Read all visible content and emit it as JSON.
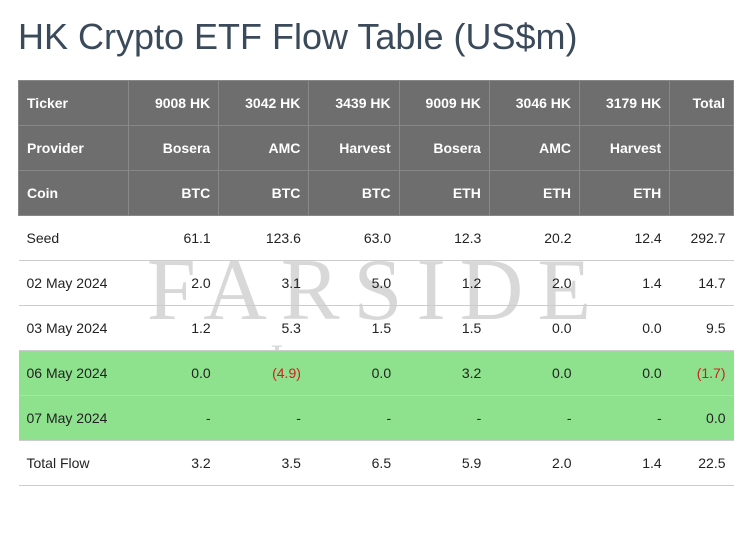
{
  "title": "HK Crypto ETF Flow Table (US$m)",
  "watermark": {
    "line1": "FARSIDE",
    "line2": "Investors"
  },
  "colors": {
    "header_bg": "#6e6e6e",
    "header_text": "#ffffff",
    "row_highlight": "#8ee28e",
    "negative_text": "#d11e1e",
    "title_text": "#3a4a5a",
    "border": "#cccccc",
    "watermark_text": "#d8d8d8"
  },
  "table": {
    "type": "table",
    "header_rows": [
      {
        "label": "Ticker",
        "cells": [
          "9008 HK",
          "3042 HK",
          "3439 HK",
          "9009 HK",
          "3046 HK",
          "3179 HK",
          "Total"
        ]
      },
      {
        "label": "Provider",
        "cells": [
          "Bosera",
          "AMC",
          "Harvest",
          "Bosera",
          "AMC",
          "Harvest",
          ""
        ]
      },
      {
        "label": "Coin",
        "cells": [
          "BTC",
          "BTC",
          "BTC",
          "ETH",
          "ETH",
          "ETH",
          ""
        ]
      }
    ],
    "body_rows": [
      {
        "label": "Seed",
        "highlight": false,
        "cells": [
          {
            "v": "61.1"
          },
          {
            "v": "123.6"
          },
          {
            "v": "63.0"
          },
          {
            "v": "12.3"
          },
          {
            "v": "20.2"
          },
          {
            "v": "12.4"
          },
          {
            "v": "292.7"
          }
        ]
      },
      {
        "label": "02 May 2024",
        "highlight": false,
        "cells": [
          {
            "v": "2.0"
          },
          {
            "v": "3.1"
          },
          {
            "v": "5.0"
          },
          {
            "v": "1.2"
          },
          {
            "v": "2.0"
          },
          {
            "v": "1.4"
          },
          {
            "v": "14.7"
          }
        ]
      },
      {
        "label": "03 May 2024",
        "highlight": false,
        "cells": [
          {
            "v": "1.2"
          },
          {
            "v": "5.3"
          },
          {
            "v": "1.5"
          },
          {
            "v": "1.5"
          },
          {
            "v": "0.0"
          },
          {
            "v": "0.0"
          },
          {
            "v": "9.5"
          }
        ]
      },
      {
        "label": "06 May 2024",
        "highlight": true,
        "cells": [
          {
            "v": "0.0"
          },
          {
            "v": "(4.9)",
            "neg": true
          },
          {
            "v": "0.0"
          },
          {
            "v": "3.2"
          },
          {
            "v": "0.0"
          },
          {
            "v": "0.0"
          },
          {
            "v": "(1.7)",
            "neg": true
          }
        ]
      },
      {
        "label": "07 May 2024",
        "highlight": true,
        "cells": [
          {
            "v": "-"
          },
          {
            "v": "-"
          },
          {
            "v": "-"
          },
          {
            "v": "-"
          },
          {
            "v": "-"
          },
          {
            "v": "-"
          },
          {
            "v": "0.0"
          }
        ]
      },
      {
        "label": "Total Flow",
        "highlight": false,
        "cells": [
          {
            "v": "3.2"
          },
          {
            "v": "3.5"
          },
          {
            "v": "6.5"
          },
          {
            "v": "5.9"
          },
          {
            "v": "2.0"
          },
          {
            "v": "1.4"
          },
          {
            "v": "22.5"
          }
        ]
      }
    ]
  }
}
